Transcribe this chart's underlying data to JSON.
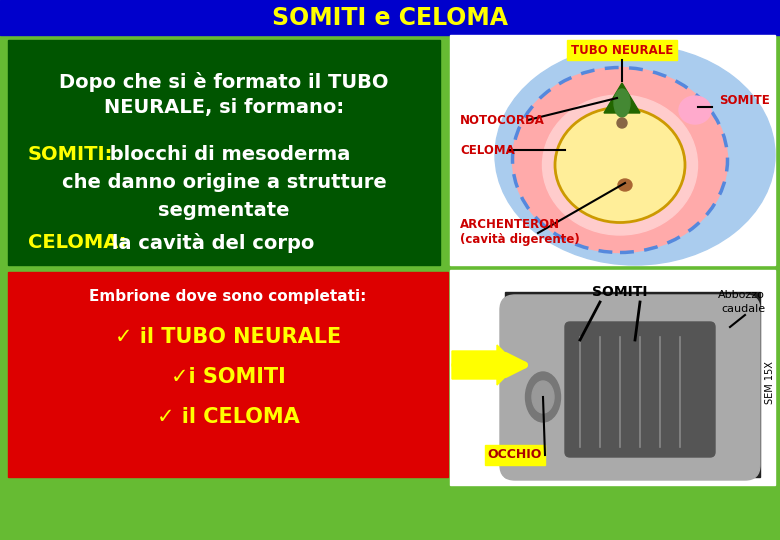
{
  "title": "SOMITI e CELOMA",
  "title_bg": "#0000CC",
  "title_color": "#FFFF00",
  "bg_color": "#66BB33",
  "left_panel_bg": "#005500",
  "left_panel_text_color": "#FFFFFF",
  "yellow_text": "#FFFF00",
  "red_panel_bg": "#DD0000",
  "red_panel_text_color": "#FFFF00",
  "intro_text_line1": "Dopo che si è formato il TUBO",
  "intro_text_line2": "NEURALE, si formano:",
  "somiti_label": "SOMITI:",
  "somiti_desc_line1": " blocchi di mesoderma",
  "somiti_desc_line2": "che danno origine a strutture",
  "somiti_desc_line3": "segmentate",
  "celoma_label": "CELOMA:",
  "celoma_desc": " la cavità del corpo",
  "red_title": "Embrione dove sono completati:",
  "red_item1": "✓ il TUBO NEURALE",
  "red_item2": "✓i SOMITI",
  "red_item3": "✓ il CELOMA",
  "label_tubo": "TUBO NEURALE",
  "label_notocorda": "NOTOCORDA",
  "label_somite": "SOMITE",
  "label_celoma_diag": "CELOMA",
  "label_archenteron": "ARCHENTERON",
  "label_archenteron2": "(cavità digerente)",
  "label_somiti2": "SOMITI",
  "label_abbozzo": "Abbozzo",
  "label_abbozzo2": "caudale",
  "label_occhio": "OCCHIO",
  "label_sem": "SEM 15X"
}
